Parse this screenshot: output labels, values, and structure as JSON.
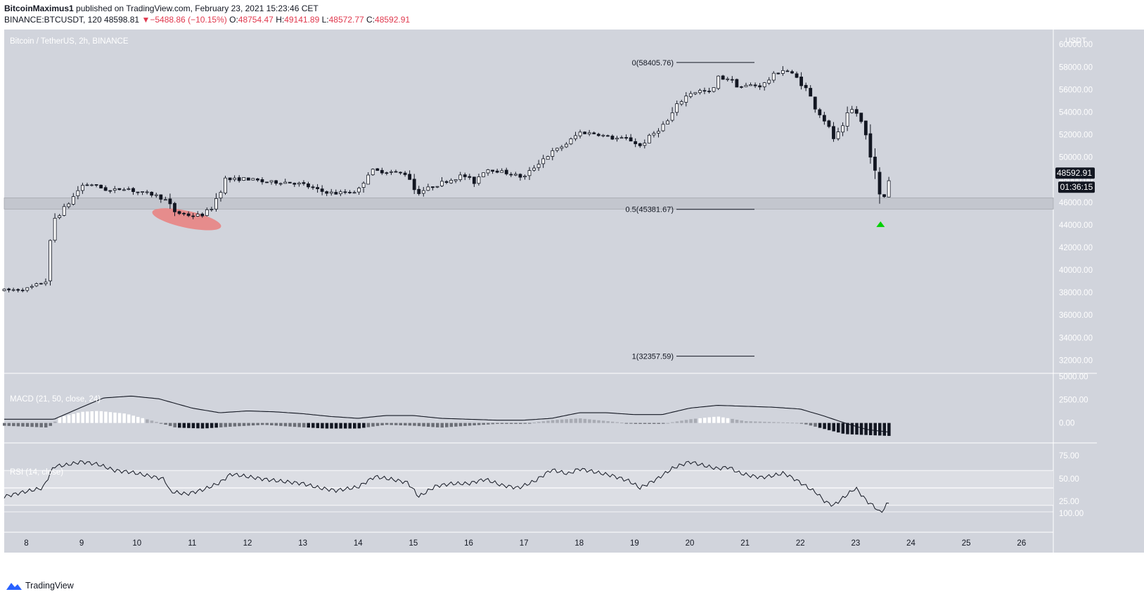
{
  "header": {
    "publisher": "BitcoinMaximus1",
    "published_text": "published on TradingView.com, February 23, 2021 15:23:46 CET",
    "symbol": "BINANCE:BTCUSDT, 120",
    "last": "48598.81",
    "change_arrow": "▼",
    "change": "−5488.86 (−10.15%)",
    "o_label": "O:",
    "o": "48754.47",
    "h_label": "H:",
    "h": "49141.89",
    "l_label": "L:",
    "l": "48572.77",
    "c_label": "C:",
    "c": "48592.91"
  },
  "pane_title": "Bitcoin / TetherUS, 2h, BINANCE",
  "macd_title": "MACD (21, 50, close, 24)",
  "rsi_title": "RSI (14, close)",
  "brand": "TradingView",
  "colors": {
    "background": "#d1d4dc",
    "up_candle": "#ffffff",
    "down_candle": "#131722",
    "support_zone": "#c3c6ce",
    "highlight_ellipse": "#e68c8c",
    "signal_arrow": "#00d000",
    "price_label_bg": "#131722"
  },
  "chart_data": [
    {
      "type": "candlestick",
      "title": "Bitcoin / TetherUS, 2h, BINANCE",
      "y_axis_unit": "USDT",
      "ylim": [
        30900,
        61200
      ],
      "y_ticks": [
        "60000.00",
        "58000.00",
        "56000.00",
        "54000.00",
        "52000.00",
        "50000.00",
        "48000.00",
        "46000.00",
        "44000.00",
        "42000.00",
        "40000.00",
        "38000.00",
        "36000.00",
        "34000.00",
        "32000.00"
      ],
      "x_ticks": [
        "8",
        "9",
        "10",
        "11",
        "12",
        "13",
        "14",
        "15",
        "16",
        "17",
        "18",
        "19",
        "20",
        "21",
        "22",
        "23",
        "24",
        "25",
        "26"
      ],
      "x_range_days": [
        7.6,
        26.6
      ],
      "anchors": [
        [
          7.6,
          38200
        ],
        [
          8.0,
          38300
        ],
        [
          8.35,
          39000
        ],
        [
          8.5,
          44500
        ],
        [
          8.7,
          45500
        ],
        [
          9.0,
          47500
        ],
        [
          9.2,
          47600
        ],
        [
          9.5,
          47000
        ],
        [
          9.8,
          47300
        ],
        [
          10.0,
          46900
        ],
        [
          10.3,
          46700
        ],
        [
          10.5,
          46300
        ],
        [
          10.7,
          45100
        ],
        [
          11.0,
          44800
        ],
        [
          11.2,
          44900
        ],
        [
          11.35,
          45500
        ],
        [
          11.6,
          48000
        ],
        [
          12.0,
          48100
        ],
        [
          12.3,
          47800
        ],
        [
          12.7,
          47800
        ],
        [
          13.0,
          47600
        ],
        [
          13.3,
          47000
        ],
        [
          13.6,
          46800
        ],
        [
          14.0,
          47000
        ],
        [
          14.2,
          48800
        ],
        [
          14.6,
          48700
        ],
        [
          14.9,
          48500
        ],
        [
          15.05,
          46800
        ],
        [
          15.5,
          47700
        ],
        [
          15.9,
          48400
        ],
        [
          16.1,
          47800
        ],
        [
          16.3,
          49000
        ],
        [
          16.7,
          48600
        ],
        [
          17.0,
          48200
        ],
        [
          17.3,
          49700
        ],
        [
          17.5,
          50400
        ],
        [
          17.8,
          51300
        ],
        [
          18.0,
          52200
        ],
        [
          18.3,
          52100
        ],
        [
          18.6,
          51700
        ],
        [
          18.9,
          51600
        ],
        [
          19.1,
          51000
        ],
        [
          19.3,
          51900
        ],
        [
          19.6,
          53200
        ],
        [
          19.8,
          54800
        ],
        [
          20.0,
          55700
        ],
        [
          20.2,
          55900
        ],
        [
          20.4,
          55700
        ],
        [
          20.5,
          57000
        ],
        [
          20.7,
          57000
        ],
        [
          20.9,
          56200
        ],
        [
          21.1,
          56400
        ],
        [
          21.3,
          56300
        ],
        [
          21.5,
          57200
        ],
        [
          21.7,
          57800
        ],
        [
          21.9,
          57200
        ],
        [
          22.1,
          56100
        ],
        [
          22.3,
          54200
        ],
        [
          22.45,
          53200
        ],
        [
          22.6,
          51700
        ],
        [
          22.75,
          52400
        ],
        [
          22.9,
          54300
        ],
        [
          23.05,
          53800
        ],
        [
          23.2,
          51700
        ],
        [
          23.3,
          49800
        ],
        [
          23.45,
          46000
        ],
        [
          23.55,
          46800
        ],
        [
          23.62,
          48590
        ]
      ],
      "last_price_label": "48592.91",
      "countdown_label": "01:36:15",
      "fib_levels": [
        {
          "label": "0(58405.76)",
          "value": 58405.76
        },
        {
          "label": "0.5(45381.67)",
          "value": 45381.67
        },
        {
          "label": "1(32357.59)",
          "value": 32357.59
        }
      ],
      "support_zone": [
        45400,
        46400
      ],
      "highlight_region": {
        "day_center": 10.9,
        "price_center": 44500
      },
      "buy_signal": {
        "day": 23.45,
        "price": 44000
      }
    },
    {
      "type": "bar+line",
      "title": "MACD (21, 50, close, 24)",
      "y_ticks": [
        "5000.00",
        "2500.00",
        "0.00"
      ],
      "ylim": [
        -2000,
        5200
      ],
      "macd_line": [
        [
          7.6,
          400
        ],
        [
          8.5,
          400
        ],
        [
          9.0,
          1700
        ],
        [
          9.4,
          2700
        ],
        [
          9.9,
          2900
        ],
        [
          10.4,
          2600
        ],
        [
          11.0,
          1600
        ],
        [
          11.5,
          1100
        ],
        [
          12.0,
          1300
        ],
        [
          12.5,
          1200
        ],
        [
          13.0,
          1000
        ],
        [
          13.5,
          700
        ],
        [
          14.0,
          500
        ],
        [
          14.5,
          800
        ],
        [
          15.0,
          800
        ],
        [
          15.5,
          500
        ],
        [
          16.0,
          400
        ],
        [
          16.5,
          300
        ],
        [
          17.0,
          300
        ],
        [
          17.5,
          500
        ],
        [
          18.0,
          1100
        ],
        [
          18.5,
          1100
        ],
        [
          19.0,
          900
        ],
        [
          19.5,
          900
        ],
        [
          20.0,
          1600
        ],
        [
          20.5,
          1900
        ],
        [
          21.0,
          1800
        ],
        [
          21.5,
          1700
        ],
        [
          22.0,
          1500
        ],
        [
          22.4,
          800
        ],
        [
          22.8,
          0
        ],
        [
          23.2,
          -700
        ],
        [
          23.62,
          -1000
        ]
      ],
      "histogram": [
        [
          7.6,
          -300
        ],
        [
          8.4,
          -500
        ],
        [
          8.6,
          600
        ],
        [
          9.0,
          1200
        ],
        [
          9.3,
          1300
        ],
        [
          9.8,
          1000
        ],
        [
          10.3,
          200
        ],
        [
          10.7,
          -500
        ],
        [
          11.2,
          -600
        ],
        [
          11.7,
          -400
        ],
        [
          12.3,
          -200
        ],
        [
          12.8,
          -400
        ],
        [
          13.4,
          -600
        ],
        [
          14.0,
          -600
        ],
        [
          14.5,
          -200
        ],
        [
          15.0,
          -300
        ],
        [
          15.5,
          -500
        ],
        [
          16.0,
          -300
        ],
        [
          16.5,
          -100
        ],
        [
          17.0,
          -100
        ],
        [
          17.5,
          300
        ],
        [
          18.0,
          500
        ],
        [
          18.5,
          200
        ],
        [
          19.0,
          -100
        ],
        [
          19.5,
          -100
        ],
        [
          20.0,
          400
        ],
        [
          20.5,
          700
        ],
        [
          21.0,
          200
        ],
        [
          21.5,
          100
        ],
        [
          22.0,
          0
        ],
        [
          22.4,
          -600
        ],
        [
          22.8,
          -1200
        ],
        [
          23.2,
          -1300
        ],
        [
          23.62,
          -1400
        ]
      ]
    },
    {
      "type": "line",
      "title": "RSI (14, close)",
      "y_ticks": [
        "75.00",
        "50.00",
        "25.00",
        "100.00"
      ],
      "ylim": [
        0,
        100
      ],
      "series": [
        [
          7.6,
          40
        ],
        [
          8.0,
          46
        ],
        [
          8.3,
          50
        ],
        [
          8.5,
          75
        ],
        [
          8.7,
          76
        ],
        [
          9.0,
          80
        ],
        [
          9.3,
          77
        ],
        [
          9.6,
          70
        ],
        [
          9.9,
          68
        ],
        [
          10.2,
          64
        ],
        [
          10.5,
          60
        ],
        [
          10.6,
          46
        ],
        [
          10.9,
          43
        ],
        [
          11.2,
          48
        ],
        [
          11.5,
          56
        ],
        [
          11.7,
          66
        ],
        [
          12.0,
          63
        ],
        [
          12.3,
          60
        ],
        [
          12.7,
          57
        ],
        [
          13.0,
          55
        ],
        [
          13.3,
          50
        ],
        [
          13.6,
          47
        ],
        [
          14.0,
          51
        ],
        [
          14.3,
          63
        ],
        [
          14.6,
          60
        ],
        [
          14.9,
          56
        ],
        [
          15.1,
          40
        ],
        [
          15.4,
          52
        ],
        [
          15.7,
          55
        ],
        [
          16.0,
          55
        ],
        [
          16.3,
          60
        ],
        [
          16.6,
          53
        ],
        [
          16.9,
          50
        ],
        [
          17.2,
          58
        ],
        [
          17.5,
          71
        ],
        [
          17.8,
          66
        ],
        [
          18.0,
          72
        ],
        [
          18.3,
          68
        ],
        [
          18.6,
          64
        ],
        [
          18.9,
          58
        ],
        [
          19.1,
          50
        ],
        [
          19.4,
          60
        ],
        [
          19.7,
          73
        ],
        [
          20.0,
          80
        ],
        [
          20.3,
          75
        ],
        [
          20.5,
          72
        ],
        [
          20.7,
          74
        ],
        [
          20.9,
          67
        ],
        [
          21.1,
          64
        ],
        [
          21.3,
          62
        ],
        [
          21.5,
          64
        ],
        [
          21.7,
          67
        ],
        [
          21.9,
          60
        ],
        [
          22.1,
          52
        ],
        [
          22.3,
          44
        ],
        [
          22.45,
          34
        ],
        [
          22.6,
          30
        ],
        [
          22.8,
          40
        ],
        [
          23.0,
          50
        ],
        [
          23.2,
          35
        ],
        [
          23.35,
          28
        ],
        [
          23.45,
          21
        ],
        [
          23.55,
          30
        ],
        [
          23.62,
          34
        ]
      ]
    }
  ]
}
